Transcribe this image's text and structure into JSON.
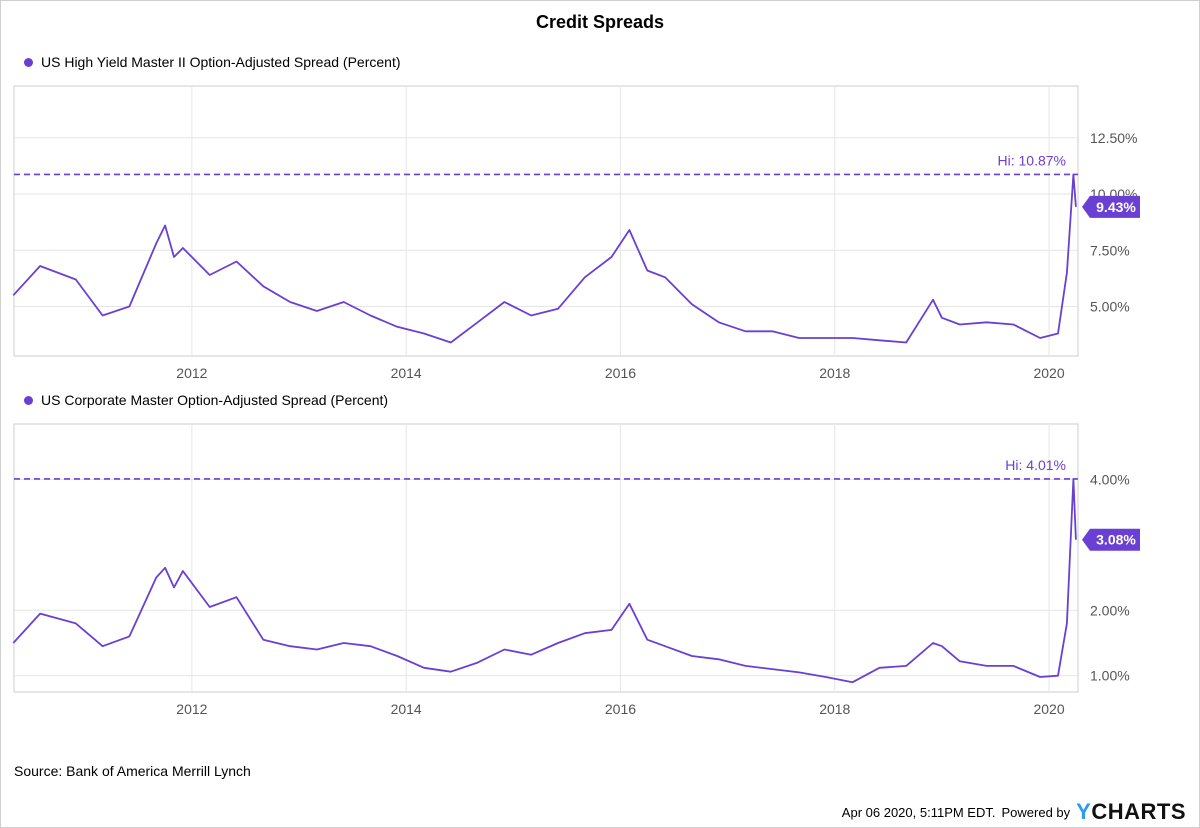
{
  "title": "Credit Spreads",
  "source": "Source: Bank of America Merrill Lynch",
  "footer": {
    "timestamp": "Apr 06 2020, 5:11PM EDT.",
    "powered_by": "Powered by",
    "brand_y": "Y",
    "brand_rest": "CHARTS"
  },
  "colors": {
    "series": "#6a3fd4",
    "grid": "#e6e6e6",
    "axis_text": "#555555"
  },
  "chart_data": [
    {
      "type": "line",
      "series": [
        {
          "name": "US High Yield Master II Option-Adjusted Spread (Percent)",
          "x": [
            "2010-05",
            "2010-08",
            "2010-12",
            "2011-03",
            "2011-06",
            "2011-09",
            "2011-10",
            "2011-11",
            "2011-12",
            "2012-03",
            "2012-06",
            "2012-09",
            "2012-12",
            "2013-03",
            "2013-06",
            "2013-09",
            "2013-12",
            "2014-03",
            "2014-06",
            "2014-09",
            "2014-12",
            "2015-03",
            "2015-06",
            "2015-09",
            "2015-12",
            "2016-02",
            "2016-04",
            "2016-06",
            "2016-09",
            "2016-12",
            "2017-03",
            "2017-06",
            "2017-09",
            "2017-12",
            "2018-03",
            "2018-06",
            "2018-09",
            "2018-12",
            "2019-01",
            "2019-03",
            "2019-06",
            "2019-09",
            "2019-12",
            "2020-02",
            "2020-03",
            "2020-03-23",
            "2020-04"
          ],
          "values": [
            5.5,
            6.8,
            6.2,
            4.6,
            5.0,
            7.8,
            8.6,
            7.2,
            7.6,
            6.4,
            7.0,
            5.9,
            5.2,
            4.8,
            5.2,
            4.6,
            4.1,
            3.8,
            3.4,
            4.3,
            5.2,
            4.6,
            4.9,
            6.3,
            7.2,
            8.4,
            6.6,
            6.3,
            5.1,
            4.3,
            3.9,
            3.9,
            3.6,
            3.6,
            3.6,
            3.5,
            3.4,
            5.3,
            4.5,
            4.2,
            4.3,
            4.2,
            3.6,
            3.8,
            6.5,
            10.87,
            9.43
          ],
          "hi_label": "Hi: 10.87%",
          "hi": 10.87,
          "last_label": "9.43%",
          "last": 9.43
        }
      ],
      "x_ticks": [
        "2012",
        "2014",
        "2016",
        "2018",
        "2020"
      ],
      "y_ticks": [
        "5.00%",
        "7.50%",
        "10.00%",
        "12.50%"
      ],
      "y_tick_values": [
        5,
        7.5,
        10,
        12.5
      ],
      "ylim": [
        2.8,
        14.8
      ],
      "grid": true
    },
    {
      "type": "line",
      "series": [
        {
          "name": "US Corporate Master Option-Adjusted Spread (Percent)",
          "x": [
            "2010-05",
            "2010-08",
            "2010-12",
            "2011-03",
            "2011-06",
            "2011-09",
            "2011-10",
            "2011-11",
            "2011-12",
            "2012-03",
            "2012-06",
            "2012-09",
            "2012-12",
            "2013-03",
            "2013-06",
            "2013-09",
            "2013-12",
            "2014-03",
            "2014-06",
            "2014-09",
            "2014-12",
            "2015-03",
            "2015-06",
            "2015-09",
            "2015-12",
            "2016-02",
            "2016-04",
            "2016-06",
            "2016-09",
            "2016-12",
            "2017-03",
            "2017-06",
            "2017-09",
            "2017-12",
            "2018-03",
            "2018-06",
            "2018-09",
            "2018-12",
            "2019-01",
            "2019-03",
            "2019-06",
            "2019-09",
            "2019-12",
            "2020-02",
            "2020-03",
            "2020-03-23",
            "2020-04"
          ],
          "values": [
            1.5,
            1.95,
            1.8,
            1.45,
            1.6,
            2.5,
            2.65,
            2.35,
            2.6,
            2.05,
            2.2,
            1.55,
            1.45,
            1.4,
            1.5,
            1.45,
            1.3,
            1.12,
            1.06,
            1.2,
            1.4,
            1.32,
            1.5,
            1.65,
            1.7,
            2.1,
            1.55,
            1.45,
            1.3,
            1.25,
            1.15,
            1.1,
            1.05,
            0.98,
            0.9,
            1.12,
            1.15,
            1.5,
            1.45,
            1.22,
            1.15,
            1.15,
            0.98,
            1.0,
            1.8,
            4.01,
            3.08
          ],
          "hi_label": "Hi: 4.01%",
          "hi": 4.01,
          "last_label": "3.08%",
          "last": 3.08
        }
      ],
      "x_ticks": [
        "2012",
        "2014",
        "2016",
        "2018",
        "2020"
      ],
      "y_ticks": [
        "1.00%",
        "2.00%",
        "4.00%"
      ],
      "y_tick_values": [
        1,
        2,
        4
      ],
      "ylim": [
        0.75,
        4.85
      ],
      "grid": true
    }
  ]
}
